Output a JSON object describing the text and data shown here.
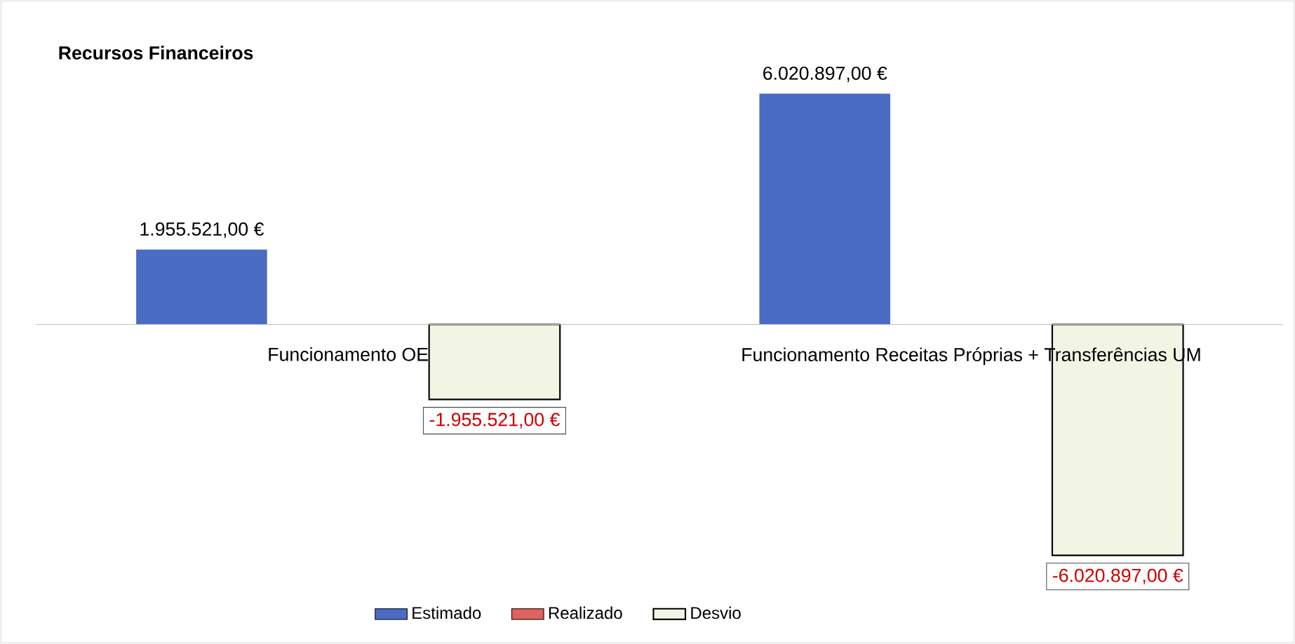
{
  "chart_data": {
    "type": "bar",
    "title": "Recursos Financeiros",
    "categories": [
      "Funcionamento OE",
      "Funcionamento Receitas Próprias + Transferências UM"
    ],
    "series": [
      {
        "name": "Estimado",
        "color": "#4a6cc4",
        "values": [
          1955521,
          6020897
        ],
        "value_labels": [
          "1.955.521,00 €",
          "6.020.897,00 €"
        ]
      },
      {
        "name": "Realizado",
        "color": "#e0625c",
        "values": [
          null,
          null
        ]
      },
      {
        "name": "Desvio",
        "color": "#f3f5e4",
        "values": [
          -1955521,
          -6020897
        ],
        "value_labels": [
          "-1.955.521,00 €",
          "-6.020.897,00 €"
        ]
      }
    ],
    "legend": "bottom"
  }
}
